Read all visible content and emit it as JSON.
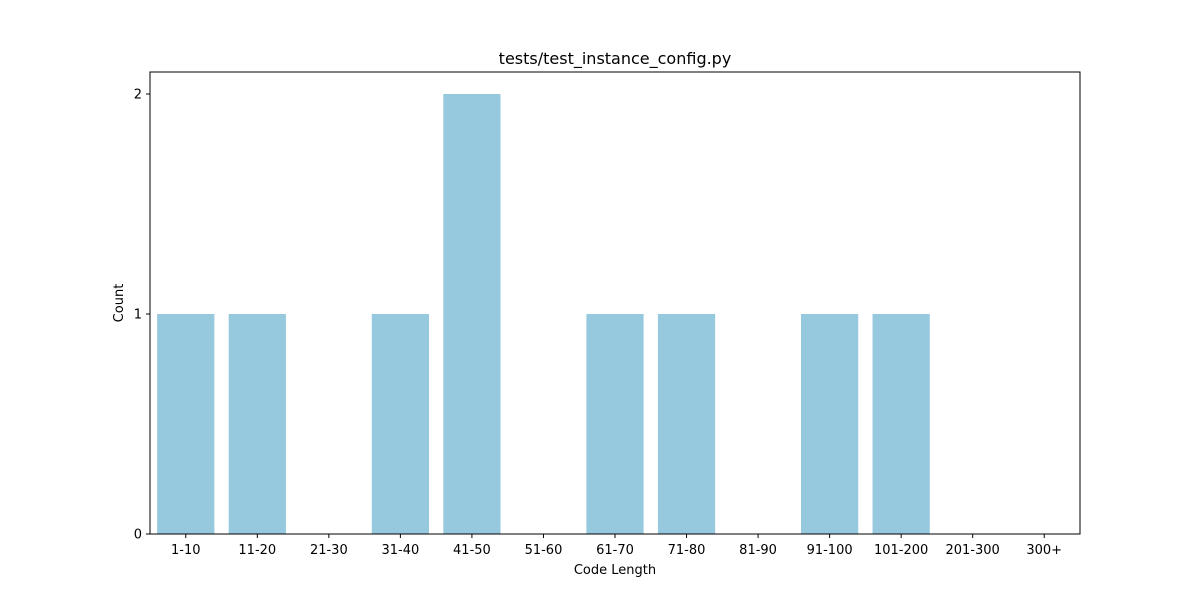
{
  "chart_data": {
    "type": "bar",
    "title": "tests/test_instance_config.py",
    "xlabel": "Code Length",
    "ylabel": "Count",
    "categories": [
      "1-10",
      "11-20",
      "21-30",
      "31-40",
      "41-50",
      "51-60",
      "61-70",
      "71-80",
      "81-90",
      "91-100",
      "101-200",
      "201-300",
      "300+"
    ],
    "values": [
      1,
      1,
      0,
      1,
      2,
      0,
      1,
      1,
      0,
      1,
      1,
      0,
      0
    ],
    "yticks": [
      0,
      1,
      2
    ],
    "ylim": [
      0,
      2.1
    ],
    "bar_color": "#96c9de",
    "grid": false,
    "legend": "none"
  }
}
